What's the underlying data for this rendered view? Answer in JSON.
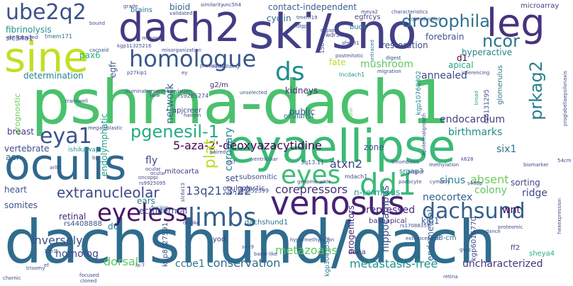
{
  "words": [
    {
      "t": "dachshund/dach",
      "c": "#2f6c8e"
    },
    {
      "t": "pshrna-dach1",
      "c": "#4ac16d"
    },
    {
      "t": "eyaellipse",
      "c": "#3aba76"
    },
    {
      "t": "oculis",
      "c": "#30698e"
    },
    {
      "t": "ski/sno",
      "c": "#424086"
    },
    {
      "t": "dach2",
      "c": "#443983"
    },
    {
      "t": "sine",
      "c": "#c2df23"
    },
    {
      "t": "leg",
      "c": "#46337e"
    },
    {
      "t": "venosus",
      "c": "#482173"
    },
    {
      "t": "eyeless",
      "c": "#471365"
    },
    {
      "t": "limbs",
      "c": "#355f8d"
    },
    {
      "t": "eyes",
      "c": "#3dbc74"
    },
    {
      "t": "dd1",
      "c": "#3aba76"
    },
    {
      "t": "dachsund",
      "c": "#355f8d"
    },
    {
      "t": "homologue",
      "c": "#38588c"
    },
    {
      "t": "ube2q2",
      "c": "#3b518b"
    },
    {
      "t": "ds",
      "c": "#228c8d"
    },
    {
      "t": "eya1",
      "c": "#3b528b"
    },
    {
      "t": "drosophila",
      "c": "#2d718e"
    },
    {
      "t": "pgenesil-1",
      "c": "#25ab82"
    },
    {
      "t": "5-aza-2'-deoxyazacytidine",
      "c": "#440154"
    },
    {
      "t": "extranucleolar",
      "c": "#3e4a89"
    },
    {
      "t": "prkag2",
      "c": "#277f8e"
    },
    {
      "t": "plat",
      "c": "#b5de2b"
    },
    {
      "t": "ncor",
      "c": "#2c738e"
    },
    {
      "t": "atxn2",
      "c": "#414487"
    },
    {
      "t": "13q21.3-22",
      "c": "#3e4c8a"
    },
    {
      "t": "corepressors",
      "c": "#46307e"
    },
    {
      "t": "metastasis-free",
      "c": "#21918c"
    },
    {
      "t": "metazoans",
      "c": "#5ec962"
    },
    {
      "t": "conservation",
      "c": "#306a8e"
    },
    {
      "t": "ccbe1",
      "c": "#2c738e"
    },
    {
      "t": "dorsal",
      "c": "#5ec962"
    },
    {
      "t": "homolog",
      "c": "#3f4889"
    },
    {
      "t": "inversely",
      "c": "#3b528b"
    },
    {
      "t": "uncharacterized",
      "c": "#46327e"
    },
    {
      "t": "colony",
      "c": "#5ec962"
    },
    {
      "t": "wnt",
      "c": "#440154"
    },
    {
      "t": "six1",
      "c": "#2c738e"
    },
    {
      "t": "sinus",
      "c": "#277f8e"
    },
    {
      "t": "absent",
      "c": "#6ccd5a"
    },
    {
      "t": "ridge",
      "c": "#3e4a89"
    },
    {
      "t": "neocortex",
      "c": "#355f8d"
    },
    {
      "t": "repressed",
      "c": "#472c7a"
    },
    {
      "t": "progenitors",
      "c": "#482576"
    },
    {
      "t": "hippocampus",
      "c": "#3b528b"
    },
    {
      "t": "endometrial",
      "c": "#32658e"
    },
    {
      "t": "endocardium",
      "c": "#433e85"
    },
    {
      "t": "birthmarks",
      "c": "#238a8d"
    },
    {
      "t": "annealed",
      "c": "#3e4a89"
    },
    {
      "t": "mushroom",
      "c": "#5ec962"
    },
    {
      "t": "fate",
      "c": "#b5de2b"
    },
    {
      "t": "public",
      "c": "#3b528b"
    },
    {
      "t": "kidneys",
      "c": "#472d7b"
    },
    {
      "t": "network",
      "c": "#306a8e"
    },
    {
      "t": "coronary",
      "c": "#25848e"
    },
    {
      "t": "fly",
      "c": "#3e4989"
    },
    {
      "t": "set",
      "c": "#3e4a89"
    },
    {
      "t": "zone",
      "c": "#3b528b"
    },
    {
      "t": "heart",
      "c": "#3b528b"
    },
    {
      "t": "retinal",
      "c": "#482475"
    },
    {
      "t": "ectodermal",
      "c": "#3b528b"
    },
    {
      "t": "ears",
      "c": "#26828e"
    },
    {
      "t": "d6",
      "c": "#2a788e"
    },
    {
      "t": "somites",
      "c": "#3b528b"
    },
    {
      "t": "vertebrate",
      "c": "#3e4a89"
    },
    {
      "t": "aer",
      "c": "#306a8e"
    },
    {
      "t": "breast",
      "c": "#443983"
    },
    {
      "t": "determination",
      "c": "#25848e"
    },
    {
      "t": "pax6",
      "c": "#29af7f"
    },
    {
      "t": "fibrinolysis",
      "c": "#21918c"
    },
    {
      "t": "slc34a1",
      "c": "#414487"
    },
    {
      "t": "contact-independent",
      "c": "#355f8d"
    },
    {
      "t": "cyclin",
      "c": "#31688e"
    },
    {
      "t": "bioid",
      "c": "#31688e"
    },
    {
      "t": "brains",
      "c": "#2c728e"
    },
    {
      "t": "restoration",
      "c": "#3f4889"
    },
    {
      "t": "forebrain",
      "c": "#3b528b"
    },
    {
      "t": "hyperactive",
      "c": "#26828e"
    },
    {
      "t": "apical",
      "c": "#25ab82"
    },
    {
      "t": "d1",
      "c": "#440154"
    },
    {
      "t": "microarray",
      "c": "#414487"
    },
    {
      "t": "g2/m",
      "c": "#482878"
    },
    {
      "t": "buds",
      "c": "#2a788e"
    },
    {
      "t": "egfrcys",
      "c": "#404588"
    },
    {
      "t": "endolymphatic",
      "c": "#1fa187"
    },
    {
      "t": "egfr",
      "c": "#3a548c"
    },
    {
      "t": "n-terminus",
      "c": "#1fa187"
    },
    {
      "t": "kip1",
      "c": "#3a548c"
    },
    {
      "t": "sorting",
      "c": "#414487"
    },
    {
      "t": "prognostic",
      "c": "#6ccd5a"
    },
    {
      "t": "apjcreer",
      "c": "#3e4a89"
    },
    {
      "t": "mitocarta",
      "c": "#453882"
    },
    {
      "t": "dachshund1",
      "c": "#2d708e"
    },
    {
      "t": "ocularist",
      "c": "#2c738e"
    },
    {
      "t": "fusion",
      "c": "#2c738e"
    },
    {
      "t": "tmem171",
      "c": "#2e6e8e"
    },
    {
      "t": "glomerulus",
      "c": "#2a788e"
    },
    {
      "t": "ishikawapr",
      "c": "#1e9b8a"
    },
    {
      "t": "subsomitic",
      "c": "#3b528b"
    },
    {
      "t": "daoa",
      "c": "#46337e"
    },
    {
      "t": "oculoplastic",
      "c": "#3e4a89"
    },
    {
      "t": "basoapical",
      "c": "#472d7b"
    },
    {
      "t": "28-cm",
      "c": "#2c738e"
    },
    {
      "t": "yod",
      "c": "#433e85"
    },
    {
      "t": "rs4408888",
      "c": "#3a548c"
    },
    {
      "t": "sheya4",
      "c": "#29af7f"
    },
    {
      "t": "ff2",
      "c": "#3e4a89"
    },
    {
      "t": "kgp8327591",
      "c": "#39558c"
    },
    {
      "t": "b3gnt4",
      "c": "#32658e"
    },
    {
      "t": "kgp6016770",
      "c": "#3e4a89"
    },
    {
      "t": "3q13.11",
      "c": "#3b528b"
    },
    {
      "t": "kgp3041552",
      "c": "#2c738e"
    },
    {
      "t": "kgp10760302",
      "c": "#26828e"
    },
    {
      "t": "rs6131295",
      "c": "#3b528b"
    },
    {
      "t": "1504r",
      "c": "#3e4a89"
    },
    {
      "t": "rs9352399",
      "c": "#3e4a89"
    },
    {
      "t": "rs9285274",
      "c": "#3e4a89"
    },
    {
      "t": "srgap3",
      "c": "#2a788e"
    },
    {
      "t": "genome-wide",
      "c": "#3e4a89"
    },
    {
      "t": "lncdach1",
      "c": "#1f958b"
    },
    {
      "t": "mdach1",
      "c": "#3f4889"
    },
    {
      "t": "htb-134",
      "c": "#3a548c"
    },
    {
      "t": "14e1",
      "c": "#3b528b"
    },
    {
      "t": "k628",
      "c": "#3e4a89"
    },
    {
      "t": "s486p",
      "c": "#3e4a89"
    },
    {
      "t": "s439",
      "c": "#3b528b"
    },
    {
      "t": "54cm",
      "c": "#3e4a89"
    },
    {
      "t": "abundance",
      "c": "#3b528b"
    },
    {
      "t": "proteomic",
      "c": "#3e4a89"
    },
    {
      "t": "cymetry",
      "c": "#3e4a89"
    },
    {
      "t": "podocyte",
      "c": "#3e4a89"
    },
    {
      "t": "exteroceptive",
      "c": "#3b528b"
    },
    {
      "t": "thrombosis",
      "c": "#3e4a89"
    },
    {
      "t": "unselected",
      "c": "#3b528b"
    },
    {
      "t": "conn",
      "c": "#6ccd5a"
    },
    {
      "t": "broad",
      "c": "#1fa187"
    },
    {
      "t": "postmitotic",
      "c": "#3e4a89"
    },
    {
      "t": "migration",
      "c": "#3e4a89"
    },
    {
      "t": "inferencing",
      "c": "#3e4a89"
    },
    {
      "t": "untraced",
      "c": "#2c738e"
    },
    {
      "t": "wdr37",
      "c": "#3e4a89"
    },
    {
      "t": "meya2",
      "c": "#3e4a89"
    },
    {
      "t": "characteristics",
      "c": "#3e4a89"
    },
    {
      "t": "unc5h4",
      "c": "#3e4a89"
    },
    {
      "t": "grade",
      "c": "#3e4a89"
    },
    {
      "t": "bound",
      "c": "#3e4a89"
    },
    {
      "t": "antagonized",
      "c": "#3e4a89"
    },
    {
      "t": "mucosa",
      "c": "#3e4a89"
    },
    {
      "t": "cacnaid",
      "c": "#3e4a89"
    },
    {
      "t": "kgp11325216",
      "c": "#3e4a89"
    },
    {
      "t": "p27kip1",
      "c": "#3e4a89"
    },
    {
      "t": "transwell",
      "c": "#3e4a89"
    },
    {
      "t": "hairpin",
      "c": "#3e4a89"
    },
    {
      "t": "paired",
      "c": "#3e4a89"
    },
    {
      "t": "ventricular",
      "c": "#3e4a89"
    },
    {
      "t": "ocular",
      "c": "#3e4a89"
    },
    {
      "t": "proper",
      "c": "#3e4a89"
    },
    {
      "t": "methylation",
      "c": "#3e4a89"
    },
    {
      "t": "biomarker",
      "c": "#3e4a89"
    },
    {
      "t": "ocular",
      "c": "#3e4a89"
    },
    {
      "t": "oncoppi",
      "c": "#3e4a89"
    },
    {
      "t": "rs9925095",
      "c": "#3e4a89"
    },
    {
      "t": "arlht",
      "c": "#3e4a89"
    },
    {
      "t": "slc6a13",
      "c": "#3e4a89"
    },
    {
      "t": "dotlike",
      "c": "#3e4a89"
    },
    {
      "t": "basal-like",
      "c": "#3e4a89"
    },
    {
      "t": "hypermethylation",
      "c": "#3e4a89"
    },
    {
      "t": "rs17088351",
      "c": "#3e4a89"
    },
    {
      "t": "gvgc",
      "c": "#3e4a89"
    },
    {
      "t": "retina",
      "c": "#3e4a89"
    },
    {
      "t": "focused",
      "c": "#3e4a89"
    },
    {
      "t": "chornic",
      "c": "#3e4a89"
    },
    {
      "t": "cloned",
      "c": "#3e4a89"
    },
    {
      "t": "la-7",
      "c": "#3e4a89"
    },
    {
      "t": "trisomy",
      "c": "#3e4a89"
    },
    {
      "t": "similarity",
      "c": "#3e4a89"
    },
    {
      "t": "validated",
      "c": "#3e4a89"
    },
    {
      "t": "misorganization",
      "c": "#3e4a89"
    },
    {
      "t": "outbuilding",
      "c": "#3e4a89"
    },
    {
      "t": "predicting",
      "c": "#3e4a89"
    },
    {
      "t": "sfmbt1",
      "c": "#3e4a89"
    },
    {
      "t": "digest",
      "c": "#3e4a89"
    },
    {
      "t": "ey",
      "c": "#3e4a89"
    },
    {
      "t": "epidermalgrowth",
      "c": "#3e4a89"
    },
    {
      "t": "hexexpression",
      "c": "#3e4a89"
    },
    {
      "t": "proglabellaepsilonaxis",
      "c": "#3e4a89"
    },
    {
      "t": "illuminahumanmethylation",
      "c": "#3e4a89"
    },
    {
      "t": "flow",
      "c": "#3e4a89"
    },
    {
      "t": "bp",
      "c": "#3e4a89"
    },
    {
      "t": "coproduction",
      "c": "#3e4a89"
    },
    {
      "t": "tmem19",
      "c": "#3e4a89"
    },
    {
      "t": "dlgap1",
      "c": "#3e4a89"
    },
    {
      "t": "megaloblastic",
      "c": "#3e4a89"
    },
    {
      "t": "slcf",
      "c": "#3e4a89"
    },
    {
      "t": "ef",
      "c": "#3e4a89"
    },
    {
      "t": "dlgp",
      "c": "#3e4a89"
    },
    {
      "t": "bcl",
      "c": "#3e4a89"
    }
  ]
}
